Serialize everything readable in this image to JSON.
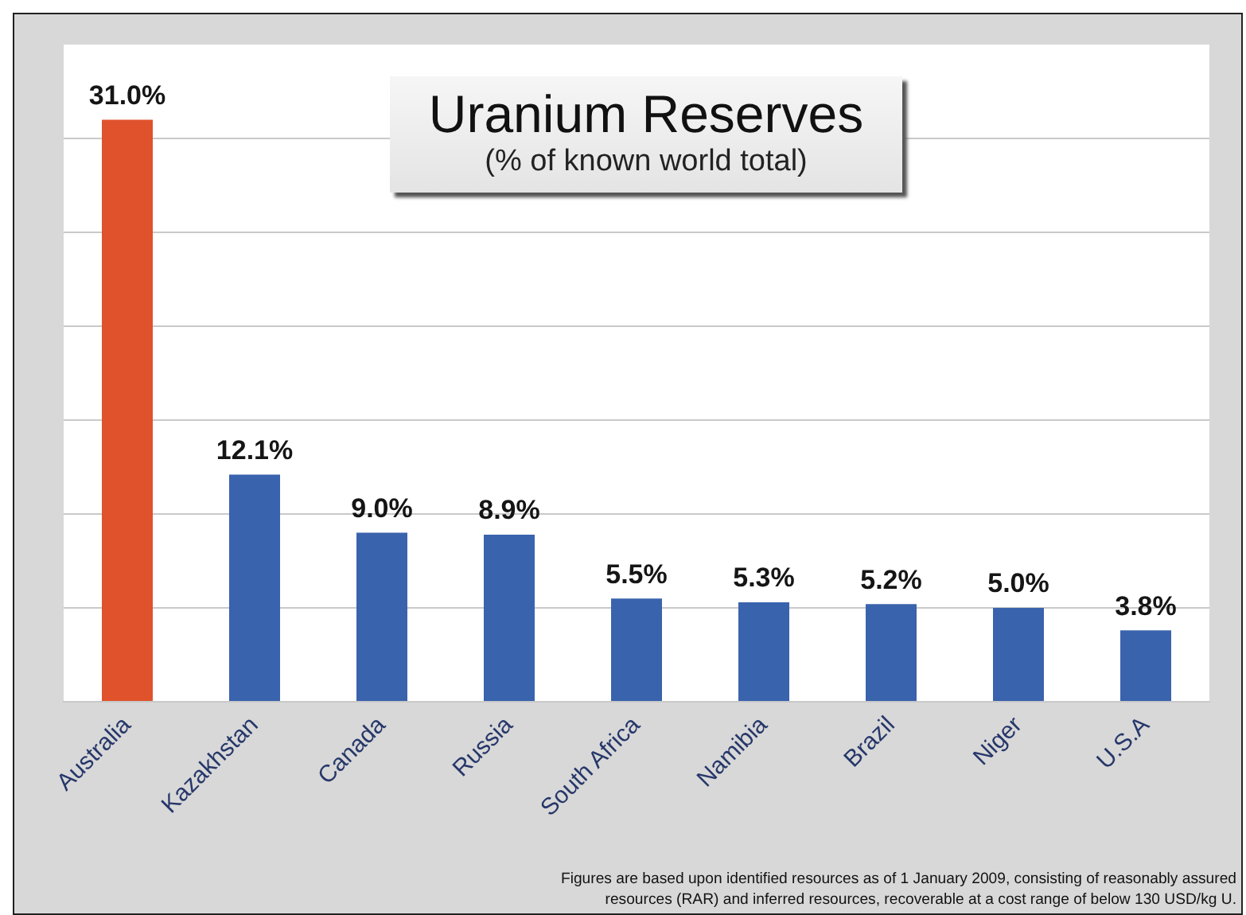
{
  "chart_data": {
    "type": "bar",
    "title": "Uranium Reserves",
    "subtitle": "(% of known world total)",
    "categories": [
      "Australia",
      "Kazakhstan",
      "Canada",
      "Russia",
      "South Africa",
      "Namibia",
      "Brazil",
      "Niger",
      "U.S.A"
    ],
    "values": [
      31.0,
      12.1,
      9.0,
      8.9,
      5.5,
      5.3,
      5.2,
      5.0,
      3.8
    ],
    "colors": [
      "#e0522c",
      "#3a63ad",
      "#3a63ad",
      "#3a63ad",
      "#3a63ad",
      "#3a63ad",
      "#3a63ad",
      "#3a63ad",
      "#3a63ad"
    ],
    "value_labels": [
      "31.0%",
      "12.1%",
      "9.0%",
      "8.9%",
      "5.5%",
      "5.3%",
      "5.2%",
      "5.0%",
      "3.8%"
    ],
    "ylim": [
      0,
      35
    ],
    "yticks": [
      {
        "value": 0,
        "label": null
      },
      {
        "value": 5,
        "label": null
      },
      {
        "value": 10,
        "label": null
      },
      {
        "value": 15,
        "label": null
      },
      {
        "value": 20,
        "label": null
      },
      {
        "value": 25,
        "label": null
      },
      {
        "value": 30,
        "label": null
      }
    ],
    "grid": "y",
    "tick_labels": "x",
    "annotations": [
      "Figures are based upon identified resources as of 1 January 2009, consisting of reasonably assured resources (RAR) and inferred resources, recoverable at a cost range of below 130 USD/kg U."
    ]
  }
}
